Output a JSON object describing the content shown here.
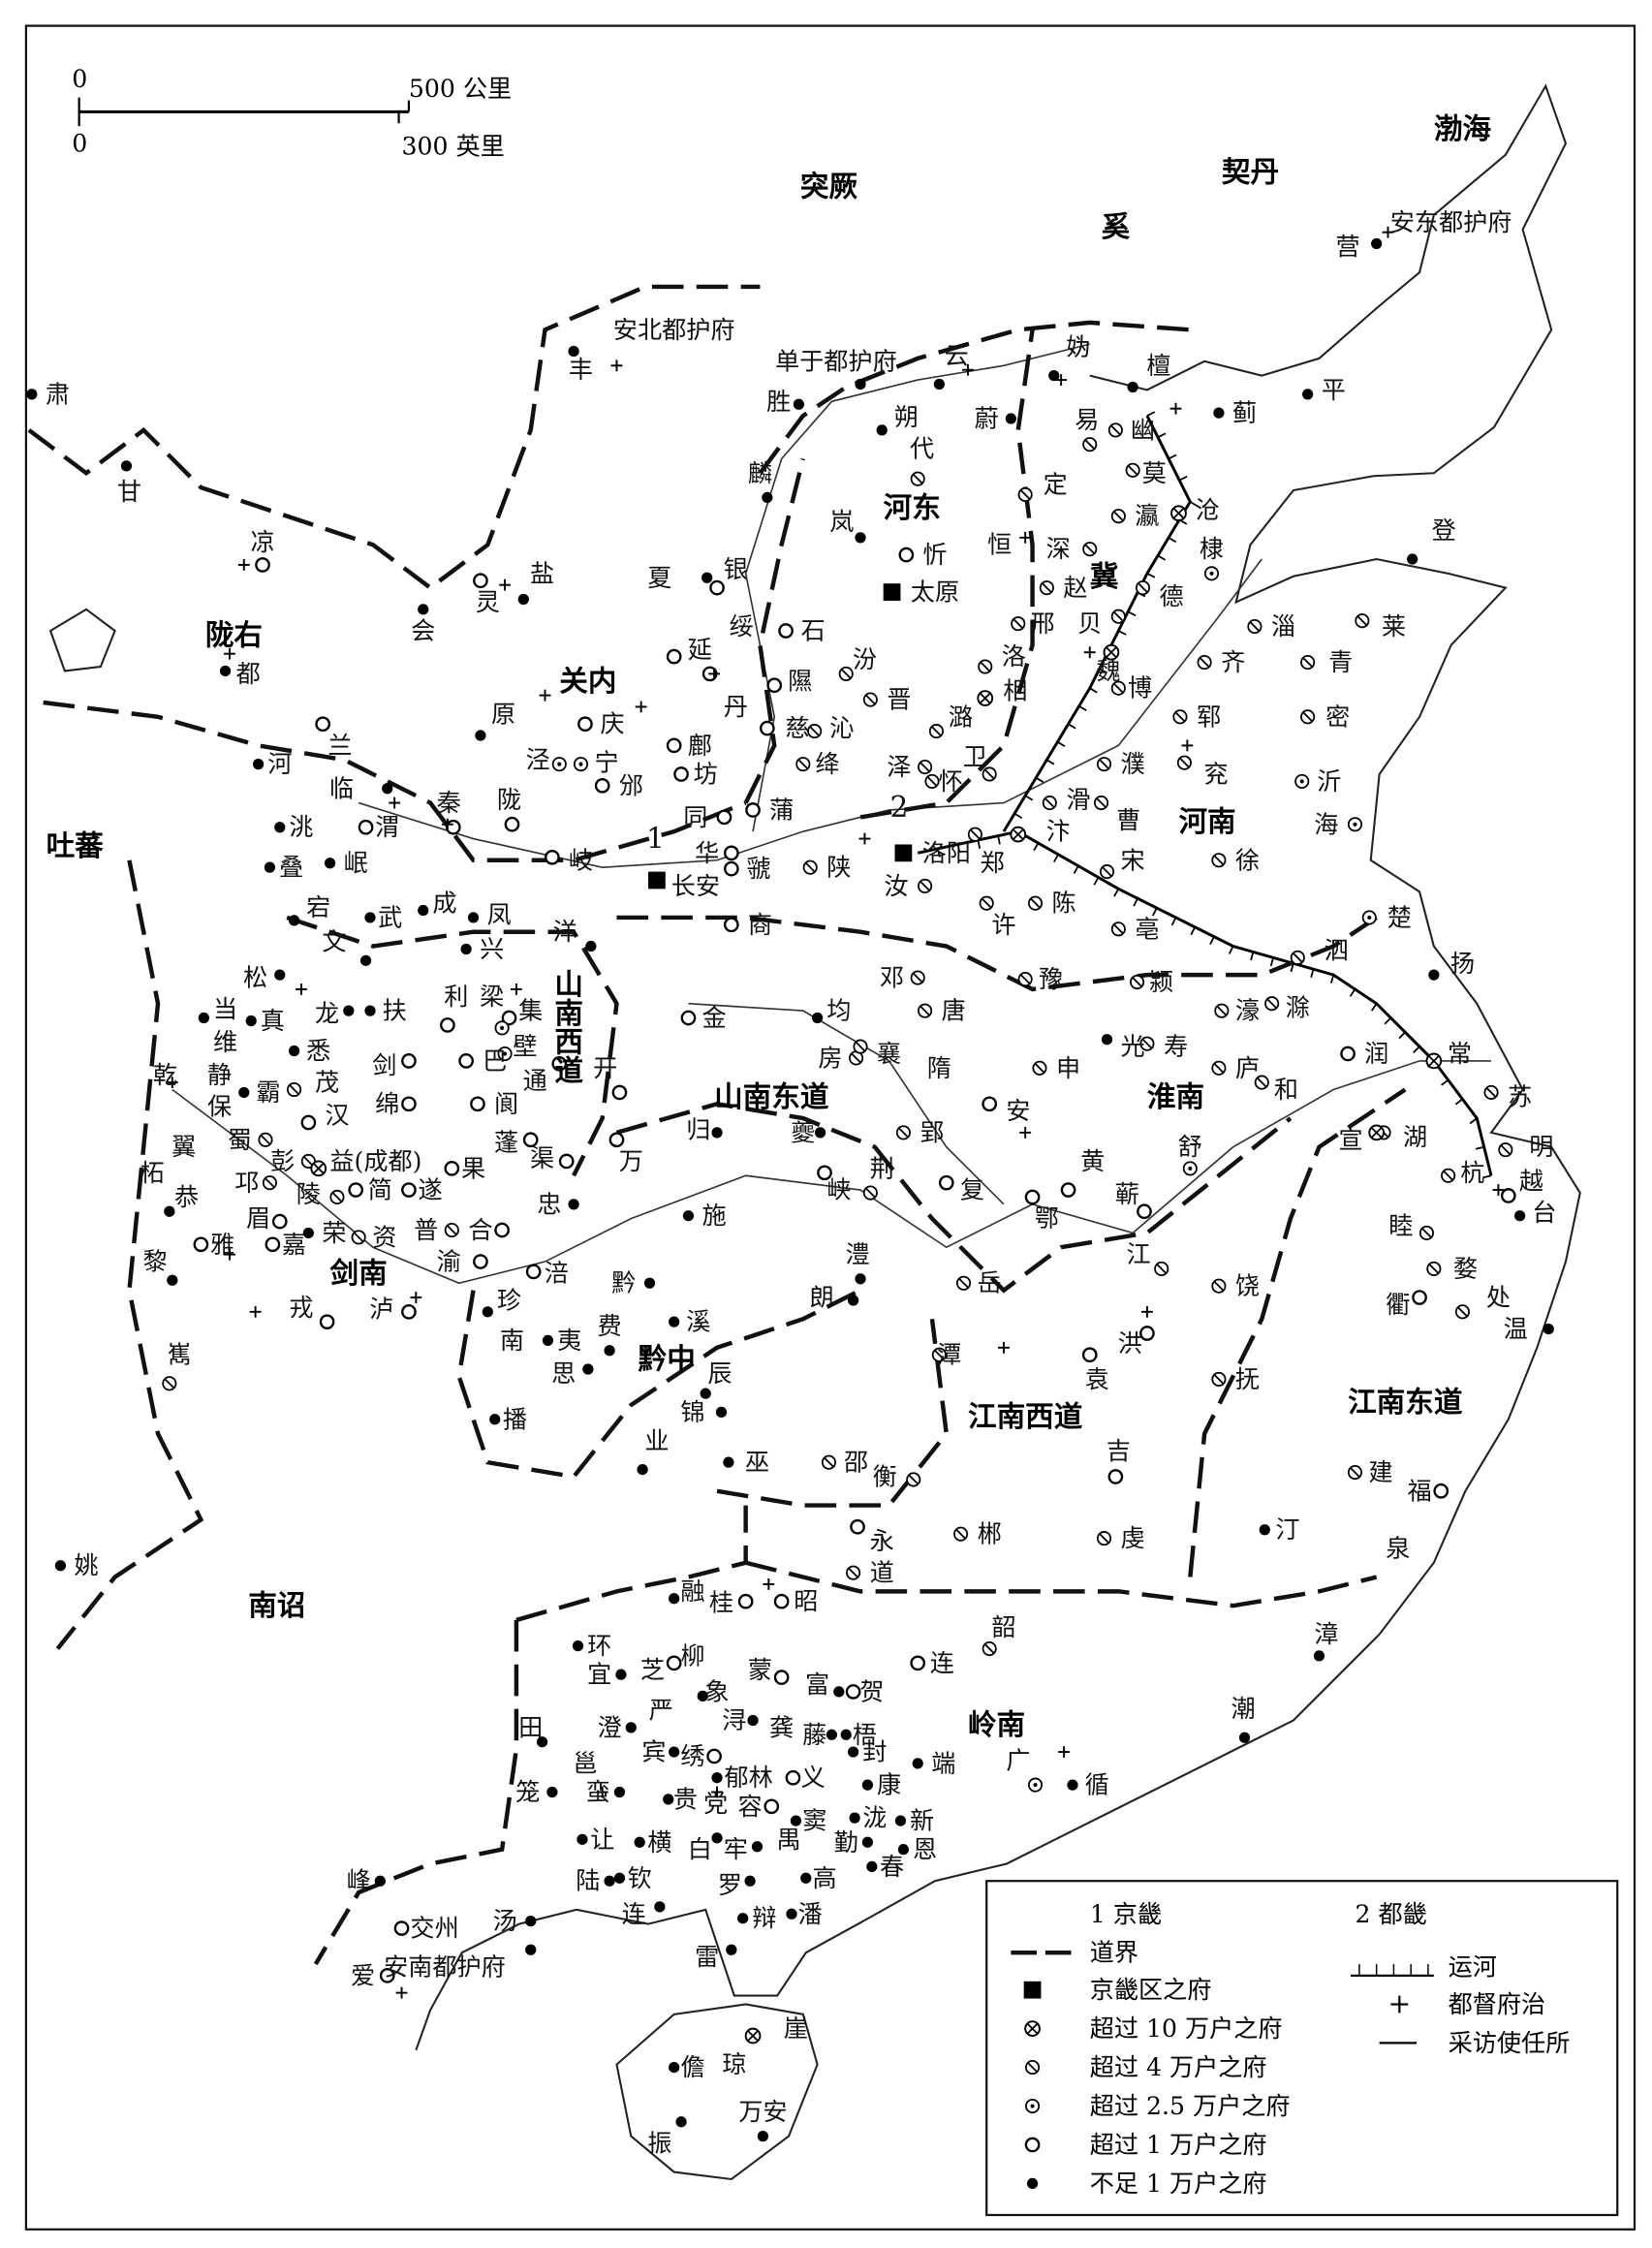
{
  "scale_bar": {
    "zero_km": "0",
    "km_label": "500 公里",
    "zero_mi": "0",
    "mi_label": "300 英里"
  },
  "legend": {
    "jingji": "1 京畿",
    "duji": "2 都畿",
    "boundary": "道界",
    "capital": "京畿区之府",
    "x10": "超过 10 万户之府",
    "x4": "超过 4 万户之府",
    "x2_5": "超过 2.5 万户之府",
    "x1": "超过 1 万户之府",
    "lt1": "不足 1 万户之府",
    "canal": "运河",
    "dudu": "都督府治",
    "caifang": "采访使任所"
  },
  "area_numbers": [
    "1",
    "2"
  ],
  "regions": [
    "突厥",
    "契丹",
    "奚",
    "渤海",
    "陇右",
    "关内",
    "河东",
    "冀",
    "河南",
    "吐蕃",
    "山南西道",
    "山南东道",
    "淮南",
    "剑南",
    "黔中",
    "江南西道",
    "江南东道",
    "南诏",
    "岭南"
  ],
  "places": [
    {
      "n": "安东都护府",
      "t": "lt1"
    },
    {
      "n": "营",
      "t": "none"
    },
    {
      "n": "安北都护府",
      "t": "lt1"
    },
    {
      "n": "丰",
      "t": "none"
    },
    {
      "n": "单于都护府",
      "t": "lt1"
    },
    {
      "n": "云",
      "t": "lt1"
    },
    {
      "n": "妫",
      "t": "lt1"
    },
    {
      "n": "檀",
      "t": "lt1"
    },
    {
      "n": "蓟",
      "t": "lt1"
    },
    {
      "n": "平",
      "t": "lt1"
    },
    {
      "n": "肃",
      "t": "lt1"
    },
    {
      "n": "甘",
      "t": "lt1"
    },
    {
      "n": "凉",
      "t": "x1"
    },
    {
      "n": "胜",
      "t": "lt1"
    },
    {
      "n": "朔",
      "t": "lt1"
    },
    {
      "n": "蔚",
      "t": "lt1"
    },
    {
      "n": "易",
      "t": "x4"
    },
    {
      "n": "幽",
      "t": "x4"
    },
    {
      "n": "代",
      "t": "x4"
    },
    {
      "n": "麟",
      "t": "lt1"
    },
    {
      "n": "定",
      "t": "x4"
    },
    {
      "n": "莫",
      "t": "x4"
    },
    {
      "n": "瀛",
      "t": "x4"
    },
    {
      "n": "沧",
      "t": "x10"
    },
    {
      "n": "恒",
      "t": "none"
    },
    {
      "n": "深",
      "t": "x4"
    },
    {
      "n": "岚",
      "t": "lt1"
    },
    {
      "n": "忻",
      "t": "x1"
    },
    {
      "n": "太原",
      "t": "capital"
    },
    {
      "n": "棣",
      "t": "x2_5"
    },
    {
      "n": "德",
      "t": "x4"
    },
    {
      "n": "赵",
      "t": "x4"
    },
    {
      "n": "登",
      "t": "lt1"
    },
    {
      "n": "盐",
      "t": "lt1"
    },
    {
      "n": "灵",
      "t": "x1"
    },
    {
      "n": "夏",
      "t": "lt1"
    },
    {
      "n": "银",
      "t": "x1"
    },
    {
      "n": "绥",
      "t": "none"
    },
    {
      "n": "会",
      "t": "lt1"
    },
    {
      "n": "石",
      "t": "x1"
    },
    {
      "n": "邢",
      "t": "x4"
    },
    {
      "n": "贝",
      "t": "x4"
    },
    {
      "n": "淄",
      "t": "x4"
    },
    {
      "n": "莱",
      "t": "x4"
    },
    {
      "n": "都",
      "t": "lt1"
    },
    {
      "n": "延",
      "t": "x1"
    },
    {
      "n": "汾",
      "t": "x4"
    },
    {
      "n": "洛",
      "t": "x4"
    },
    {
      "n": "魏",
      "t": "x10"
    },
    {
      "n": "齐",
      "t": "x4"
    },
    {
      "n": "青",
      "t": "x4"
    },
    {
      "n": "隰",
      "t": "x1"
    },
    {
      "n": "晋",
      "t": "x4"
    },
    {
      "n": "相",
      "t": "x10"
    },
    {
      "n": "丹",
      "t": "x1"
    },
    {
      "n": "博",
      "t": "x4"
    },
    {
      "n": "密",
      "t": "x4"
    },
    {
      "n": "原",
      "t": "lt1"
    },
    {
      "n": "庆",
      "t": "x1"
    },
    {
      "n": "慈",
      "t": "x1"
    },
    {
      "n": "沁",
      "t": "x4"
    },
    {
      "n": "潞",
      "t": "x4"
    },
    {
      "n": "郓",
      "t": "x4"
    },
    {
      "n": "鄜",
      "t": "x1"
    },
    {
      "n": "绛",
      "t": "x4"
    },
    {
      "n": "泽",
      "t": "x4"
    },
    {
      "n": "兖",
      "t": "x4"
    },
    {
      "n": "兰",
      "t": "x1"
    },
    {
      "n": "河",
      "t": "lt1"
    },
    {
      "n": "临",
      "t": "lt1"
    },
    {
      "n": "泾",
      "t": "x2_5"
    },
    {
      "n": "宁",
      "t": "x2_5"
    },
    {
      "n": "坊",
      "t": "x1"
    },
    {
      "n": "卫",
      "t": "x4"
    },
    {
      "n": "怀",
      "t": "x4"
    },
    {
      "n": "濮",
      "t": "x4"
    },
    {
      "n": "沂",
      "t": "x2_5"
    },
    {
      "n": "洮",
      "t": "lt1"
    },
    {
      "n": "渭",
      "t": "x1"
    },
    {
      "n": "秦",
      "t": "x1"
    },
    {
      "n": "陇",
      "t": "x1"
    },
    {
      "n": "邠",
      "t": "x1"
    },
    {
      "n": "同",
      "t": "x1"
    },
    {
      "n": "蒲",
      "t": "x1"
    },
    {
      "n": "滑",
      "t": "x4"
    },
    {
      "n": "曹",
      "t": "x4"
    },
    {
      "n": "海",
      "t": "x2_5"
    },
    {
      "n": "叠",
      "t": "lt1"
    },
    {
      "n": "岷",
      "t": "lt1"
    },
    {
      "n": "岐",
      "t": "x1"
    },
    {
      "n": "华",
      "t": "x1"
    },
    {
      "n": "虢",
      "t": "x1"
    },
    {
      "n": "陕",
      "t": "x4"
    },
    {
      "n": "长安",
      "t": "capital"
    },
    {
      "n": "洛阳",
      "t": "capital"
    },
    {
      "n": "郑",
      "t": "x4"
    },
    {
      "n": "汴",
      "t": "x10"
    },
    {
      "n": "宋",
      "t": "x4"
    },
    {
      "n": "徐",
      "t": "x4"
    },
    {
      "n": "汝",
      "t": "x4"
    },
    {
      "n": "宕",
      "t": "lt1"
    },
    {
      "n": "武",
      "t": "lt1"
    },
    {
      "n": "成",
      "t": "lt1"
    },
    {
      "n": "凤",
      "t": "lt1"
    },
    {
      "n": "商",
      "t": "x1"
    },
    {
      "n": "许",
      "t": "x4"
    },
    {
      "n": "陈",
      "t": "x4"
    },
    {
      "n": "亳",
      "t": "x4"
    },
    {
      "n": "楚",
      "t": "x2_5"
    },
    {
      "n": "洋",
      "t": "lt1"
    },
    {
      "n": "兴",
      "t": "lt1"
    },
    {
      "n": "文",
      "t": "lt1"
    },
    {
      "n": "松",
      "t": "lt1"
    },
    {
      "n": "邓",
      "t": "x4"
    },
    {
      "n": "泗",
      "t": "x4"
    },
    {
      "n": "扬",
      "t": "lt1"
    },
    {
      "n": "利",
      "t": "x1"
    },
    {
      "n": "梁",
      "t": "x1"
    },
    {
      "n": "集",
      "t": "x2_5"
    },
    {
      "n": "金",
      "t": "x1"
    },
    {
      "n": "均",
      "t": "lt1"
    },
    {
      "n": "唐",
      "t": "x4"
    },
    {
      "n": "豫",
      "t": "x4"
    },
    {
      "n": "颍",
      "t": "x4"
    },
    {
      "n": "濠",
      "t": "x4"
    },
    {
      "n": "滁",
      "t": "x4"
    },
    {
      "n": "当",
      "t": "lt1"
    },
    {
      "n": "真",
      "t": "lt1"
    },
    {
      "n": "龙",
      "t": "lt1"
    },
    {
      "n": "扶",
      "t": "lt1"
    },
    {
      "n": "壁",
      "t": "x2_5"
    },
    {
      "n": "巴",
      "t": "x1"
    },
    {
      "n": "维",
      "t": "none"
    },
    {
      "n": "悉",
      "t": "lt1"
    },
    {
      "n": "房",
      "t": "x4"
    },
    {
      "n": "襄",
      "t": "x4"
    },
    {
      "n": "光",
      "t": "lt1"
    },
    {
      "n": "寿",
      "t": "x4"
    },
    {
      "n": "润",
      "t": "x1"
    },
    {
      "n": "常",
      "t": "x10"
    },
    {
      "n": "静",
      "t": "none"
    },
    {
      "n": "茂",
      "t": "x4"
    },
    {
      "n": "剑",
      "t": "x1"
    },
    {
      "n": "阆",
      "t": "x1"
    },
    {
      "n": "隋",
      "t": "none"
    },
    {
      "n": "申",
      "t": "x4"
    },
    {
      "n": "庐",
      "t": "x4"
    },
    {
      "n": "霸",
      "t": "lt1"
    },
    {
      "n": "保",
      "t": "none"
    },
    {
      "n": "汉",
      "t": "x1"
    },
    {
      "n": "绵",
      "t": "x1"
    },
    {
      "n": "通",
      "t": "x1"
    },
    {
      "n": "开",
      "t": "x1"
    },
    {
      "n": "安",
      "t": "x1"
    },
    {
      "n": "和",
      "t": "x4"
    },
    {
      "n": "苏",
      "t": "x4"
    },
    {
      "n": "湖",
      "t": "x4"
    },
    {
      "n": "宣",
      "t": "x10"
    },
    {
      "n": "乾",
      "t": "none"
    },
    {
      "n": "蜀",
      "t": "x4"
    },
    {
      "n": "彭",
      "t": "x4"
    },
    {
      "n": "益(成都)",
      "t": "x10"
    },
    {
      "n": "蓬",
      "t": "x1"
    },
    {
      "n": "渠",
      "t": "x1"
    },
    {
      "n": "归",
      "t": "lt1"
    },
    {
      "n": "夔",
      "t": "lt1"
    },
    {
      "n": "郢",
      "t": "x4"
    },
    {
      "n": "舒",
      "t": "x2_5"
    },
    {
      "n": "杭",
      "t": "x4"
    },
    {
      "n": "明",
      "t": "x4"
    },
    {
      "n": "越",
      "t": "x1"
    },
    {
      "n": "翼",
      "t": "none"
    },
    {
      "n": "柘",
      "t": "none"
    },
    {
      "n": "邛",
      "t": "x4"
    },
    {
      "n": "简",
      "t": "x1"
    },
    {
      "n": "遂",
      "t": "x1"
    },
    {
      "n": "果",
      "t": "x1"
    },
    {
      "n": "忠",
      "t": "lt1"
    },
    {
      "n": "万",
      "t": "x1"
    },
    {
      "n": "峡",
      "t": "x1"
    },
    {
      "n": "荆",
      "t": "x4"
    },
    {
      "n": "黄",
      "t": "x1"
    },
    {
      "n": "蕲",
      "t": "x1"
    },
    {
      "n": "复",
      "t": "x1"
    },
    {
      "n": "睦",
      "t": "x4"
    },
    {
      "n": "恭",
      "t": "lt1"
    },
    {
      "n": "眉",
      "t": "x1"
    },
    {
      "n": "陵",
      "t": "x4"
    },
    {
      "n": "普",
      "t": "x4"
    },
    {
      "n": "合",
      "t": "x1"
    },
    {
      "n": "施",
      "t": "lt1"
    },
    {
      "n": "鄂",
      "t": "x1"
    },
    {
      "n": "台",
      "t": "lt1"
    },
    {
      "n": "雅",
      "t": "x1"
    },
    {
      "n": "嘉",
      "t": "x1"
    },
    {
      "n": "荣",
      "t": "lt1"
    },
    {
      "n": "资",
      "t": "x4"
    },
    {
      "n": "渝",
      "t": "x1"
    },
    {
      "n": "涪",
      "t": "x1"
    },
    {
      "n": "黔",
      "t": "lt1"
    },
    {
      "n": "澧",
      "t": "lt1"
    },
    {
      "n": "江",
      "t": "x4"
    },
    {
      "n": "饶",
      "t": "x4"
    },
    {
      "n": "婺",
      "t": "x4"
    },
    {
      "n": "黎",
      "t": "lt1"
    },
    {
      "n": "戎",
      "t": "x1"
    },
    {
      "n": "泸",
      "t": "x1"
    },
    {
      "n": "朗",
      "t": "lt1"
    },
    {
      "n": "岳",
      "t": "x4"
    },
    {
      "n": "衢",
      "t": "x1"
    },
    {
      "n": "处",
      "t": "x4"
    },
    {
      "n": "温",
      "t": "lt1"
    },
    {
      "n": "珍",
      "t": "lt1"
    },
    {
      "n": "溪",
      "t": "lt1"
    },
    {
      "n": "费",
      "t": "lt1"
    },
    {
      "n": "洪",
      "t": "x1"
    },
    {
      "n": "南",
      "t": "none"
    },
    {
      "n": "夷",
      "t": "lt1"
    },
    {
      "n": "嶲",
      "t": "x4"
    },
    {
      "n": "潭",
      "t": "x4"
    },
    {
      "n": "思",
      "t": "lt1"
    },
    {
      "n": "辰",
      "t": "lt1"
    },
    {
      "n": "袁",
      "t": "x1"
    },
    {
      "n": "抚",
      "t": "x4"
    },
    {
      "n": "锦",
      "t": "lt1"
    },
    {
      "n": "播",
      "t": "lt1"
    },
    {
      "n": "业",
      "t": "lt1"
    },
    {
      "n": "吉",
      "t": "x1"
    },
    {
      "n": "巫",
      "t": "lt1"
    },
    {
      "n": "邵",
      "t": "x4"
    },
    {
      "n": "衡",
      "t": "x4"
    },
    {
      "n": "建",
      "t": "x4"
    },
    {
      "n": "福",
      "t": "x1"
    },
    {
      "n": "汀",
      "t": "lt1"
    },
    {
      "n": "泉",
      "t": "none"
    },
    {
      "n": "永",
      "t": "x1"
    },
    {
      "n": "郴",
      "t": "x4"
    },
    {
      "n": "虔",
      "t": "x4"
    },
    {
      "n": "姚",
      "t": "lt1"
    },
    {
      "n": "道",
      "t": "x4"
    },
    {
      "n": "融",
      "t": "lt1"
    },
    {
      "n": "桂",
      "t": "x1"
    },
    {
      "n": "昭",
      "t": "x1"
    },
    {
      "n": "韶",
      "t": "x4"
    },
    {
      "n": "漳",
      "t": "lt1"
    },
    {
      "n": "环",
      "t": "lt1"
    },
    {
      "n": "柳",
      "t": "x1"
    },
    {
      "n": "连",
      "t": "x1"
    },
    {
      "n": "宜",
      "t": "lt1"
    },
    {
      "n": "芝",
      "t": "none"
    },
    {
      "n": "象",
      "t": "lt1"
    },
    {
      "n": "蒙",
      "t": "x1"
    },
    {
      "n": "富",
      "t": "lt1"
    },
    {
      "n": "贺",
      "t": "x1"
    },
    {
      "n": "严",
      "t": "none"
    },
    {
      "n": "浔",
      "t": "lt1"
    },
    {
      "n": "龚",
      "t": "none"
    },
    {
      "n": "藤",
      "t": "lt1"
    },
    {
      "n": "梧",
      "t": "lt1"
    },
    {
      "n": "田",
      "t": "lt1"
    },
    {
      "n": "澄",
      "t": "lt1"
    },
    {
      "n": "宾",
      "t": "lt1"
    },
    {
      "n": "绣",
      "t": "x1"
    },
    {
      "n": "郁林",
      "t": "lt1"
    },
    {
      "n": "义",
      "t": "x1"
    },
    {
      "n": "封",
      "t": "lt1"
    },
    {
      "n": "端",
      "t": "lt1"
    },
    {
      "n": "广",
      "t": "x2_5"
    },
    {
      "n": "循",
      "t": "lt1"
    },
    {
      "n": "潮",
      "t": "lt1"
    },
    {
      "n": "邕",
      "t": "none"
    },
    {
      "n": "蛮",
      "t": "lt1"
    },
    {
      "n": "贵",
      "t": "lt1"
    },
    {
      "n": "党",
      "t": "none"
    },
    {
      "n": "容",
      "t": "x1"
    },
    {
      "n": "康",
      "t": "lt1"
    },
    {
      "n": "笼",
      "t": "lt1"
    },
    {
      "n": "泷",
      "t": "lt1"
    },
    {
      "n": "新",
      "t": "lt1"
    },
    {
      "n": "窦",
      "t": "lt1"
    },
    {
      "n": "勤",
      "t": "lt1"
    },
    {
      "n": "恩",
      "t": "lt1"
    },
    {
      "n": "禺",
      "t": "none"
    },
    {
      "n": "横",
      "t": "lt1"
    },
    {
      "n": "白",
      "t": "lt1"
    },
    {
      "n": "牢",
      "t": "lt1"
    },
    {
      "n": "让",
      "t": "lt1"
    },
    {
      "n": "春",
      "t": "lt1"
    },
    {
      "n": "高",
      "t": "lt1"
    },
    {
      "n": "陆",
      "t": "lt1"
    },
    {
      "n": "钦",
      "t": "lt1"
    },
    {
      "n": "罗",
      "t": "lt1"
    },
    {
      "n": "峰",
      "t": "lt1"
    },
    {
      "n": "汤",
      "t": "lt1"
    },
    {
      "n": "交州",
      "t": "x1"
    },
    {
      "n": "连",
      "t": "lt1"
    },
    {
      "n": "辩",
      "t": "lt1"
    },
    {
      "n": "潘",
      "t": "lt1"
    },
    {
      "n": "安南都护府",
      "t": "lt1"
    },
    {
      "n": "爱",
      "t": "x1"
    },
    {
      "n": "雷",
      "t": "lt1"
    },
    {
      "n": "崖",
      "t": "x10"
    },
    {
      "n": "儋",
      "t": "lt1"
    },
    {
      "n": "琼",
      "t": "none"
    },
    {
      "n": "万安",
      "t": "lt1"
    },
    {
      "n": "振",
      "t": "lt1"
    }
  ]
}
